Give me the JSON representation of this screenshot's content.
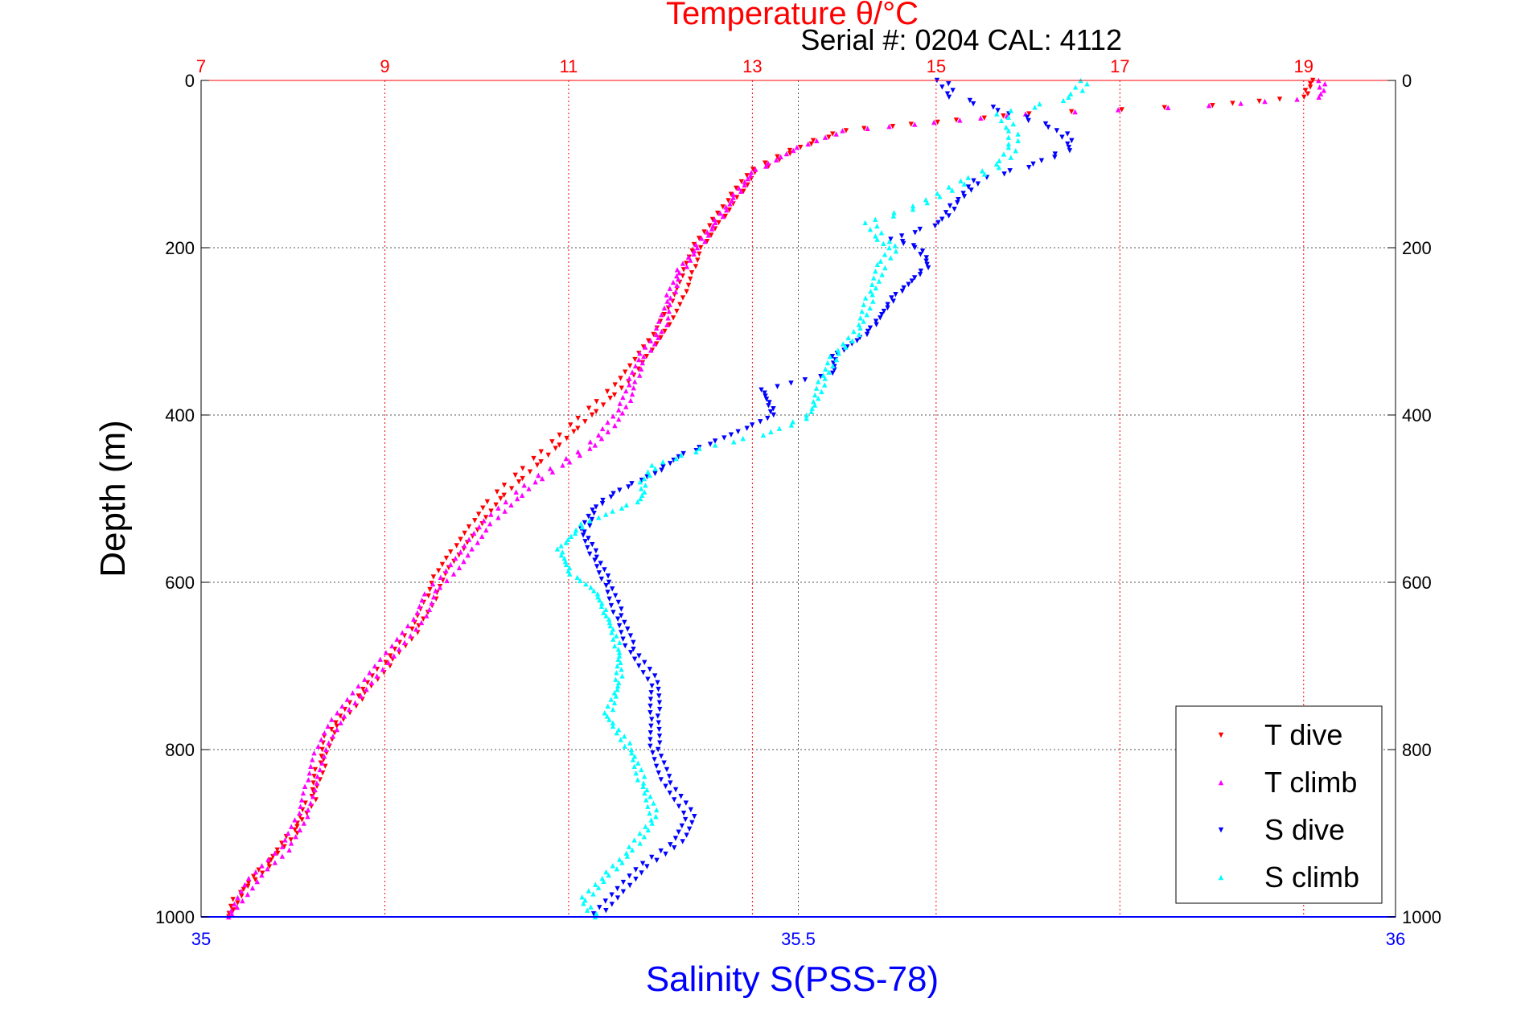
{
  "chart_data": {
    "type": "scatter",
    "title": "Temperature θ/°C",
    "subtitle": "Serial #: 0204  CAL: 4112",
    "ylabel": "Depth (m)",
    "xlabel": "Salinity S(PSS-78)",
    "y_axis": {
      "range": [
        0,
        1000
      ],
      "reversed": true,
      "ticks": [
        "0",
        "200",
        "400",
        "600",
        "800",
        "1000"
      ]
    },
    "x_top": {
      "range": [
        7,
        20
      ],
      "ticks": [
        "7",
        "9",
        "11",
        "13",
        "15",
        "17",
        "19"
      ],
      "color": "#ff0000"
    },
    "x_bottom": {
      "range": [
        35,
        36
      ],
      "ticks": [
        "35",
        "35.5",
        "36"
      ],
      "color": "#0000ff"
    },
    "grid": true,
    "legend_position": "bottom-right",
    "series": [
      {
        "name": "T dive",
        "axis": "temperature",
        "color": "#ff0000",
        "marker": "triangle-down",
        "points": [
          [
            19.1,
            0
          ],
          [
            19.0,
            20
          ],
          [
            18.0,
            30
          ],
          [
            16.0,
            40
          ],
          [
            15.0,
            50
          ],
          [
            14.0,
            60
          ],
          [
            13.5,
            80
          ],
          [
            13.0,
            110
          ],
          [
            12.8,
            140
          ],
          [
            12.6,
            170
          ],
          [
            12.4,
            200
          ],
          [
            12.3,
            230
          ],
          [
            12.2,
            260
          ],
          [
            12.0,
            300
          ],
          [
            11.8,
            330
          ],
          [
            11.6,
            360
          ],
          [
            11.4,
            380
          ],
          [
            11.2,
            400
          ],
          [
            11.0,
            420
          ],
          [
            10.8,
            440
          ],
          [
            10.6,
            460
          ],
          [
            10.4,
            480
          ],
          [
            10.2,
            500
          ],
          [
            10.0,
            530
          ],
          [
            9.8,
            560
          ],
          [
            9.6,
            590
          ],
          [
            9.5,
            620
          ],
          [
            9.3,
            660
          ],
          [
            9.0,
            700
          ],
          [
            8.7,
            740
          ],
          [
            8.4,
            780
          ],
          [
            8.3,
            820
          ],
          [
            8.2,
            860
          ],
          [
            8.0,
            900
          ],
          [
            7.7,
            940
          ],
          [
            7.4,
            975
          ],
          [
            7.3,
            1000
          ]
        ]
      },
      {
        "name": "T climb",
        "axis": "temperature",
        "color": "#ff00ff",
        "marker": "triangle-up",
        "points": [
          [
            19.2,
            0
          ],
          [
            19.2,
            20
          ],
          [
            18.0,
            30
          ],
          [
            16.0,
            40
          ],
          [
            15.0,
            50
          ],
          [
            14.0,
            60
          ],
          [
            13.5,
            80
          ],
          [
            13.0,
            110
          ],
          [
            12.8,
            140
          ],
          [
            12.6,
            170
          ],
          [
            12.4,
            200
          ],
          [
            12.2,
            230
          ],
          [
            12.1,
            260
          ],
          [
            12.0,
            300
          ],
          [
            11.8,
            330
          ],
          [
            11.7,
            360
          ],
          [
            11.6,
            390
          ],
          [
            11.4,
            420
          ],
          [
            11.2,
            440
          ],
          [
            10.9,
            460
          ],
          [
            10.6,
            480
          ],
          [
            10.4,
            500
          ],
          [
            10.1,
            530
          ],
          [
            9.9,
            560
          ],
          [
            9.7,
            590
          ],
          [
            9.5,
            610
          ],
          [
            9.4,
            640
          ],
          [
            9.1,
            680
          ],
          [
            8.8,
            720
          ],
          [
            8.5,
            760
          ],
          [
            8.3,
            800
          ],
          [
            8.2,
            840
          ],
          [
            8.1,
            880
          ],
          [
            7.9,
            920
          ],
          [
            7.6,
            950
          ],
          [
            7.3,
            1000
          ]
        ]
      },
      {
        "name": "S dive",
        "axis": "salinity",
        "color": "#0000ff",
        "marker": "triangle-down",
        "points": [
          [
            35.62,
            0
          ],
          [
            35.63,
            20
          ],
          [
            35.68,
            40
          ],
          [
            35.72,
            60
          ],
          [
            35.73,
            80
          ],
          [
            35.7,
            100
          ],
          [
            35.65,
            120
          ],
          [
            35.63,
            150
          ],
          [
            35.62,
            170
          ],
          [
            35.58,
            190
          ],
          [
            35.6,
            200
          ],
          [
            35.61,
            220
          ],
          [
            35.58,
            260
          ],
          [
            35.56,
            300
          ],
          [
            35.53,
            330
          ],
          [
            35.53,
            350
          ],
          [
            35.47,
            370
          ],
          [
            35.48,
            400
          ],
          [
            35.45,
            420
          ],
          [
            35.4,
            450
          ],
          [
            35.38,
            470
          ],
          [
            35.35,
            490
          ],
          [
            35.33,
            510
          ],
          [
            35.32,
            540
          ],
          [
            35.33,
            570
          ],
          [
            35.34,
            600
          ],
          [
            35.35,
            640
          ],
          [
            35.36,
            680
          ],
          [
            35.38,
            720
          ],
          [
            35.38,
            760
          ],
          [
            35.38,
            800
          ],
          [
            35.39,
            840
          ],
          [
            35.41,
            880
          ],
          [
            35.4,
            910
          ],
          [
            35.37,
            940
          ],
          [
            35.35,
            970
          ],
          [
            35.33,
            1000
          ]
        ]
      },
      {
        "name": "S climb",
        "axis": "salinity",
        "color": "#00ffff",
        "marker": "triangle-up",
        "points": [
          [
            35.74,
            0
          ],
          [
            35.73,
            20
          ],
          [
            35.67,
            40
          ],
          [
            35.68,
            60
          ],
          [
            35.68,
            80
          ],
          [
            35.67,
            100
          ],
          [
            35.64,
            120
          ],
          [
            35.6,
            150
          ],
          [
            35.56,
            170
          ],
          [
            35.57,
            190
          ],
          [
            35.58,
            200
          ],
          [
            35.57,
            220
          ],
          [
            35.56,
            260
          ],
          [
            35.55,
            300
          ],
          [
            35.53,
            330
          ],
          [
            35.52,
            360
          ],
          [
            35.51,
            400
          ],
          [
            35.48,
            420
          ],
          [
            35.42,
            440
          ],
          [
            35.38,
            460
          ],
          [
            35.37,
            480
          ],
          [
            35.37,
            500
          ],
          [
            35.32,
            530
          ],
          [
            35.3,
            560
          ],
          [
            35.31,
            590
          ],
          [
            35.33,
            610
          ],
          [
            35.34,
            640
          ],
          [
            35.35,
            680
          ],
          [
            35.35,
            720
          ],
          [
            35.34,
            760
          ],
          [
            35.36,
            800
          ],
          [
            35.37,
            840
          ],
          [
            35.38,
            880
          ],
          [
            35.36,
            920
          ],
          [
            35.34,
            950
          ],
          [
            35.32,
            980
          ],
          [
            35.33,
            1000
          ]
        ]
      }
    ]
  }
}
